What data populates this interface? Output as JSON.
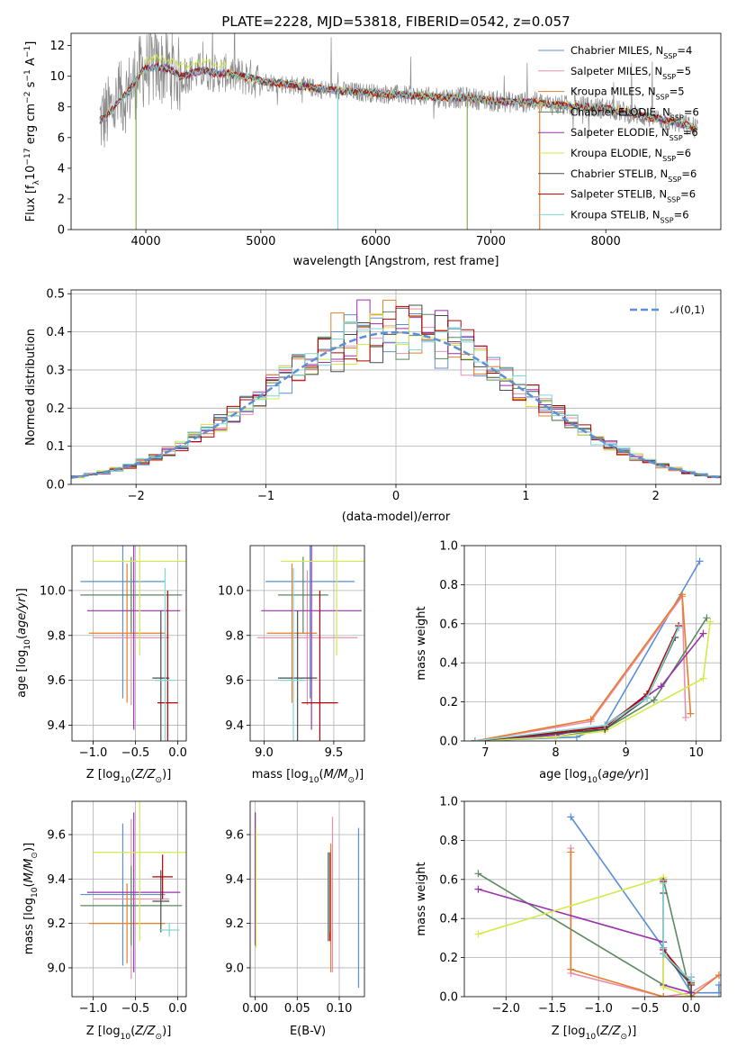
{
  "figure": {
    "title": "PLATE=2228, MJD=53818, FIBERID=0542, z=0.057"
  },
  "colors": {
    "spectrum": "#8c8c8c",
    "gauss": "#5b8fd6"
  },
  "series": [
    {
      "name": "Chabrier MILES, N_SSP=4",
      "color": "#5b8fd6"
    },
    {
      "name": "Salpeter MILES, N_SSP=5",
      "color": "#e88fb0"
    },
    {
      "name": "Kroupa MILES, N_SSP=5",
      "color": "#e87d2b"
    },
    {
      "name": "Chabrier ELODIE, N_SSP=6",
      "color": "#5a8a5e"
    },
    {
      "name": "Salpeter ELODIE, N_SSP=6",
      "color": "#9b2fae"
    },
    {
      "name": "Kroupa ELODIE, N_SSP=6",
      "color": "#d4ea4a"
    },
    {
      "name": "Chabrier STELIB, N_SSP=6",
      "color": "#4a4a4a"
    },
    {
      "name": "Salpeter STELIB, N_SSP=6",
      "color": "#b30000"
    },
    {
      "name": "Kroupa STELIB, N_SSP=6",
      "color": "#7fd6d6"
    }
  ],
  "chart_data": [
    {
      "id": "spectrum",
      "type": "line",
      "xlabel": "wavelength [Angstrom, rest frame]",
      "ylabel": "Flux [f_λ10^-17 erg cm^-2 s^-1 A^-1]",
      "xlim": [
        3350,
        9000
      ],
      "ylim": [
        0,
        12.8
      ],
      "xticks": [
        4000,
        5000,
        6000,
        7000,
        8000
      ],
      "yticks": [
        0,
        2,
        4,
        6,
        8,
        10,
        12
      ],
      "legend": "top-right",
      "grid": false,
      "continuum": {
        "x": [
          3600,
          3650,
          3700,
          3750,
          3800,
          3850,
          3900,
          3950,
          4000,
          4100,
          4200,
          4300,
          4400,
          4500,
          4600,
          4700,
          4800,
          4900,
          5000,
          5200,
          5400,
          5600,
          5800,
          6000,
          6200,
          6400,
          6600,
          6800,
          7000,
          7200,
          7400,
          7600,
          7800,
          8000,
          8200,
          8400,
          8600,
          8800
        ],
        "y": [
          7.1,
          7.4,
          7.8,
          8.2,
          8.6,
          9.0,
          9.6,
          10.2,
          10.5,
          10.6,
          10.5,
          10.0,
          10.2,
          10.4,
          10.2,
          10.2,
          10.0,
          9.9,
          9.7,
          9.5,
          9.3,
          9.1,
          9.0,
          8.9,
          8.8,
          8.7,
          8.6,
          8.6,
          8.4,
          8.3,
          8.3,
          8.1,
          8.0,
          7.9,
          7.6,
          7.3,
          7.0,
          6.6
        ]
      }
    },
    {
      "id": "residuals",
      "type": "line",
      "xlabel": "(data-model)/error",
      "ylabel": "Normed distribution",
      "xlim": [
        -2.5,
        2.5
      ],
      "ylim": [
        0,
        0.51
      ],
      "xticks": [
        -2,
        -1,
        0,
        1,
        2
      ],
      "yticks": [
        0.0,
        0.1,
        0.2,
        0.3,
        0.4,
        0.5
      ],
      "grid": true,
      "legend": "top-right",
      "gaussian_label": "𝒩(0,1)",
      "bin_width": 0.1
    },
    {
      "id": "age-vs-Z",
      "type": "scatter",
      "xlabel": "Z [log10(Z/Z_sun)]",
      "ylabel": "age [log10(age/yr)]",
      "xlim": [
        -1.25,
        0.1
      ],
      "ylim": [
        9.33,
        10.2
      ],
      "xticks": [
        -1.0,
        -0.5,
        0.0
      ],
      "yticks": [
        9.4,
        9.6,
        9.8,
        10.0
      ],
      "grid": true,
      "points": [
        {
          "x": -0.65,
          "xerr": 0.5,
          "y": 10.04,
          "yerr": 0.52
        },
        {
          "x": -0.55,
          "xerr": 0.45,
          "y": 9.79,
          "yerr": 0.3
        },
        {
          "x": -0.6,
          "xerr": 0.45,
          "y": 9.81,
          "yerr": 0.31
        },
        {
          "x": -0.55,
          "xerr": 0.6,
          "y": 9.98,
          "yerr": 0.17
        },
        {
          "x": -0.52,
          "xerr": 0.55,
          "y": 9.91,
          "yerr": 0.53
        },
        {
          "x": -0.45,
          "xerr": 0.55,
          "y": 10.13,
          "yerr": 0.42
        },
        {
          "x": -0.2,
          "xerr": 0.1,
          "y": 9.61,
          "yerr": 0.3
        },
        {
          "x": -0.12,
          "xerr": 0.12,
          "y": 9.5,
          "yerr": 0.5
        },
        {
          "x": -0.15,
          "xerr": 0.12,
          "y": 9.6,
          "yerr": 0.5
        }
      ]
    },
    {
      "id": "age-vs-mass",
      "type": "scatter",
      "xlabel": "mass [log10(M/M_sun)]",
      "ylabel": "",
      "xlim": [
        8.9,
        9.72
      ],
      "ylim": [
        9.33,
        10.2
      ],
      "xticks": [
        9.0,
        9.5
      ],
      "yticks": [
        9.4,
        9.6,
        9.8,
        10.0
      ],
      "grid": true,
      "points": [
        {
          "x": 9.33,
          "xerr": 0.32,
          "y": 10.04,
          "yerr": 0.52
        },
        {
          "x": 9.31,
          "xerr": 0.36,
          "y": 9.79,
          "yerr": 0.3
        },
        {
          "x": 9.2,
          "xerr": 0.18,
          "y": 9.81,
          "yerr": 0.31
        },
        {
          "x": 9.28,
          "xerr": 0.18,
          "y": 9.98,
          "yerr": 0.17
        },
        {
          "x": 9.34,
          "xerr": 0.36,
          "y": 9.91,
          "yerr": 0.53
        },
        {
          "x": 9.52,
          "xerr": 0.4,
          "y": 10.13,
          "yerr": 0.42
        },
        {
          "x": 9.24,
          "xerr": 0.14,
          "y": 9.61,
          "yerr": 0.3
        },
        {
          "x": 9.4,
          "xerr": 0.13,
          "y": 9.5,
          "yerr": 0.5
        },
        {
          "x": 9.21,
          "xerr": 0.1,
          "y": 9.6,
          "yerr": 0.5
        }
      ]
    },
    {
      "id": "massweight-vs-age",
      "type": "line",
      "xlabel": "age [log10(age/yr)]",
      "ylabel": "mass weight",
      "xlim": [
        6.7,
        10.35
      ],
      "ylim": [
        0.0,
        1.0
      ],
      "xticks": [
        7,
        8,
        9,
        10
      ],
      "yticks": [
        0.0,
        0.2,
        0.4,
        0.6,
        0.8,
        1.0
      ],
      "grid": true,
      "series": [
        {
          "x": [
            6.85,
            8.3,
            8.7,
            10.05
          ],
          "y": [
            0.0,
            0.02,
            0.08,
            0.92
          ]
        },
        {
          "x": [
            6.85,
            8.5,
            9.8,
            9.85
          ],
          "y": [
            0.0,
            0.1,
            0.74,
            0.12
          ]
        },
        {
          "x": [
            6.85,
            8.5,
            9.8,
            9.92
          ],
          "y": [
            0.0,
            0.11,
            0.75,
            0.14
          ]
        },
        {
          "x": [
            6.85,
            8.0,
            8.7,
            9.4,
            10.15
          ],
          "y": [
            0.0,
            0.02,
            0.06,
            0.21,
            0.63
          ]
        },
        {
          "x": [
            6.85,
            8.0,
            8.7,
            9.5,
            10.1
          ],
          "y": [
            0.0,
            0.03,
            0.08,
            0.28,
            0.55
          ]
        },
        {
          "x": [
            6.85,
            8.0,
            8.7,
            10.1,
            10.2
          ],
          "y": [
            0.0,
            0.02,
            0.05,
            0.32,
            0.61
          ]
        },
        {
          "x": [
            6.85,
            8.7,
            9.3,
            9.7
          ],
          "y": [
            0.0,
            0.06,
            0.22,
            0.53
          ]
        },
        {
          "x": [
            6.85,
            8.7,
            9.3,
            9.75
          ],
          "y": [
            0.0,
            0.07,
            0.24,
            0.59
          ]
        },
        {
          "x": [
            6.85,
            8.7,
            9.3,
            9.75
          ],
          "y": [
            0.0,
            0.08,
            0.22,
            0.58
          ]
        }
      ]
    },
    {
      "id": "mass-vs-Z",
      "type": "scatter",
      "xlabel": "Z [log10(Z/Z_sun)]",
      "ylabel": "mass [log10(M/M_sun)]",
      "xlim": [
        -1.25,
        0.1
      ],
      "ylim": [
        8.87,
        9.75
      ],
      "xticks": [
        -1.0,
        -0.5,
        0.0
      ],
      "yticks": [
        9.0,
        9.2,
        9.4,
        9.6
      ],
      "grid": true,
      "points": [
        {
          "x": -0.65,
          "xerr": 0.5,
          "y": 9.33,
          "yerr": 0.32
        },
        {
          "x": -0.55,
          "xerr": 0.45,
          "y": 9.31,
          "yerr": 0.36
        },
        {
          "x": -0.6,
          "xerr": 0.45,
          "y": 9.2,
          "yerr": 0.18
        },
        {
          "x": -0.55,
          "xerr": 0.6,
          "y": 9.28,
          "yerr": 0.18
        },
        {
          "x": -0.52,
          "xerr": 0.55,
          "y": 9.34,
          "yerr": 0.36
        },
        {
          "x": -0.45,
          "xerr": 0.55,
          "y": 9.52,
          "yerr": 0.4
        },
        {
          "x": -0.2,
          "xerr": 0.1,
          "y": 9.3,
          "yerr": 0.14
        },
        {
          "x": -0.18,
          "xerr": 0.12,
          "y": 9.41,
          "yerr": 0.1
        },
        {
          "x": -0.1,
          "xerr": 0.12,
          "y": 9.17,
          "yerr": 0.03
        }
      ]
    },
    {
      "id": "mass-vs-ebv",
      "type": "scatter",
      "xlabel": "E(B-V)",
      "ylabel": "",
      "xlim": [
        -0.006,
        0.13
      ],
      "ylim": [
        8.87,
        9.75
      ],
      "xticks": [
        0.0,
        0.05,
        0.1
      ],
      "yticks": [
        9.0,
        9.2,
        9.4,
        9.6
      ],
      "grid": true,
      "points": [
        {
          "x": 0.123,
          "y": 9.27,
          "yerr": 0.36
        },
        {
          "x": 0.092,
          "y": 9.33,
          "yerr": 0.35
        },
        {
          "x": 0.09,
          "y": 9.27,
          "yerr": 0.29
        },
        {
          "x": 0.0,
          "y": 9.45,
          "yerr": 0.25
        },
        {
          "x": 0.0,
          "y": 9.4,
          "yerr": 0.3
        },
        {
          "x": 0.001,
          "y": 9.36,
          "yerr": 0.27
        },
        {
          "x": 0.087,
          "y": 9.32,
          "yerr": 0.2
        },
        {
          "x": 0.089,
          "y": 9.32,
          "yerr": 0.2
        },
        {
          "x": 0.088,
          "y": 9.34,
          "yerr": 0.18
        }
      ]
    },
    {
      "id": "massweight-vs-Z",
      "type": "line",
      "xlabel": "Z [log10(Z/Z_sun)]",
      "ylabel": "mass weight",
      "xlim": [
        -2.45,
        0.32
      ],
      "ylim": [
        0.0,
        1.0
      ],
      "xticks": [
        -2.0,
        -1.5,
        -1.0,
        -0.5,
        0.0
      ],
      "yticks": [
        0.0,
        0.2,
        0.4,
        0.6,
        0.8,
        1.0
      ],
      "grid": true,
      "series": [
        {
          "x": [
            -1.3,
            -0.3,
            0.0,
            0.3,
            0.3
          ],
          "y": [
            0.92,
            0.25,
            0.02,
            0.02,
            0.06
          ]
        },
        {
          "x": [
            -1.3,
            -1.3,
            -0.3,
            0.0,
            0.3
          ],
          "y": [
            0.76,
            0.12,
            0.0,
            0.02,
            0.11
          ]
        },
        {
          "x": [
            -1.3,
            -1.3,
            -0.3,
            0.0,
            0.3
          ],
          "y": [
            0.74,
            0.14,
            0.0,
            0.0,
            0.11
          ]
        },
        {
          "x": [
            -2.3,
            -0.3,
            -0.3,
            0.0
          ],
          "y": [
            0.63,
            0.06,
            0.6,
            0.0
          ]
        },
        {
          "x": [
            -2.3,
            -0.3,
            -0.3,
            0.0
          ],
          "y": [
            0.55,
            0.28,
            0.06,
            0.02
          ]
        },
        {
          "x": [
            -2.3,
            -0.3,
            -0.3,
            0.0
          ],
          "y": [
            0.32,
            0.61,
            0.05,
            0.0
          ]
        },
        {
          "x": [
            -0.3,
            -0.3,
            0.0,
            0.0
          ],
          "y": [
            0.53,
            0.22,
            0.06,
            0.0
          ]
        },
        {
          "x": [
            -0.3,
            -0.3,
            0.0,
            0.0
          ],
          "y": [
            0.59,
            0.24,
            0.07,
            0.1
          ]
        },
        {
          "x": [
            -0.3,
            -0.3,
            0.0,
            0.0
          ],
          "y": [
            0.58,
            0.22,
            0.08,
            0.1
          ]
        }
      ]
    }
  ]
}
